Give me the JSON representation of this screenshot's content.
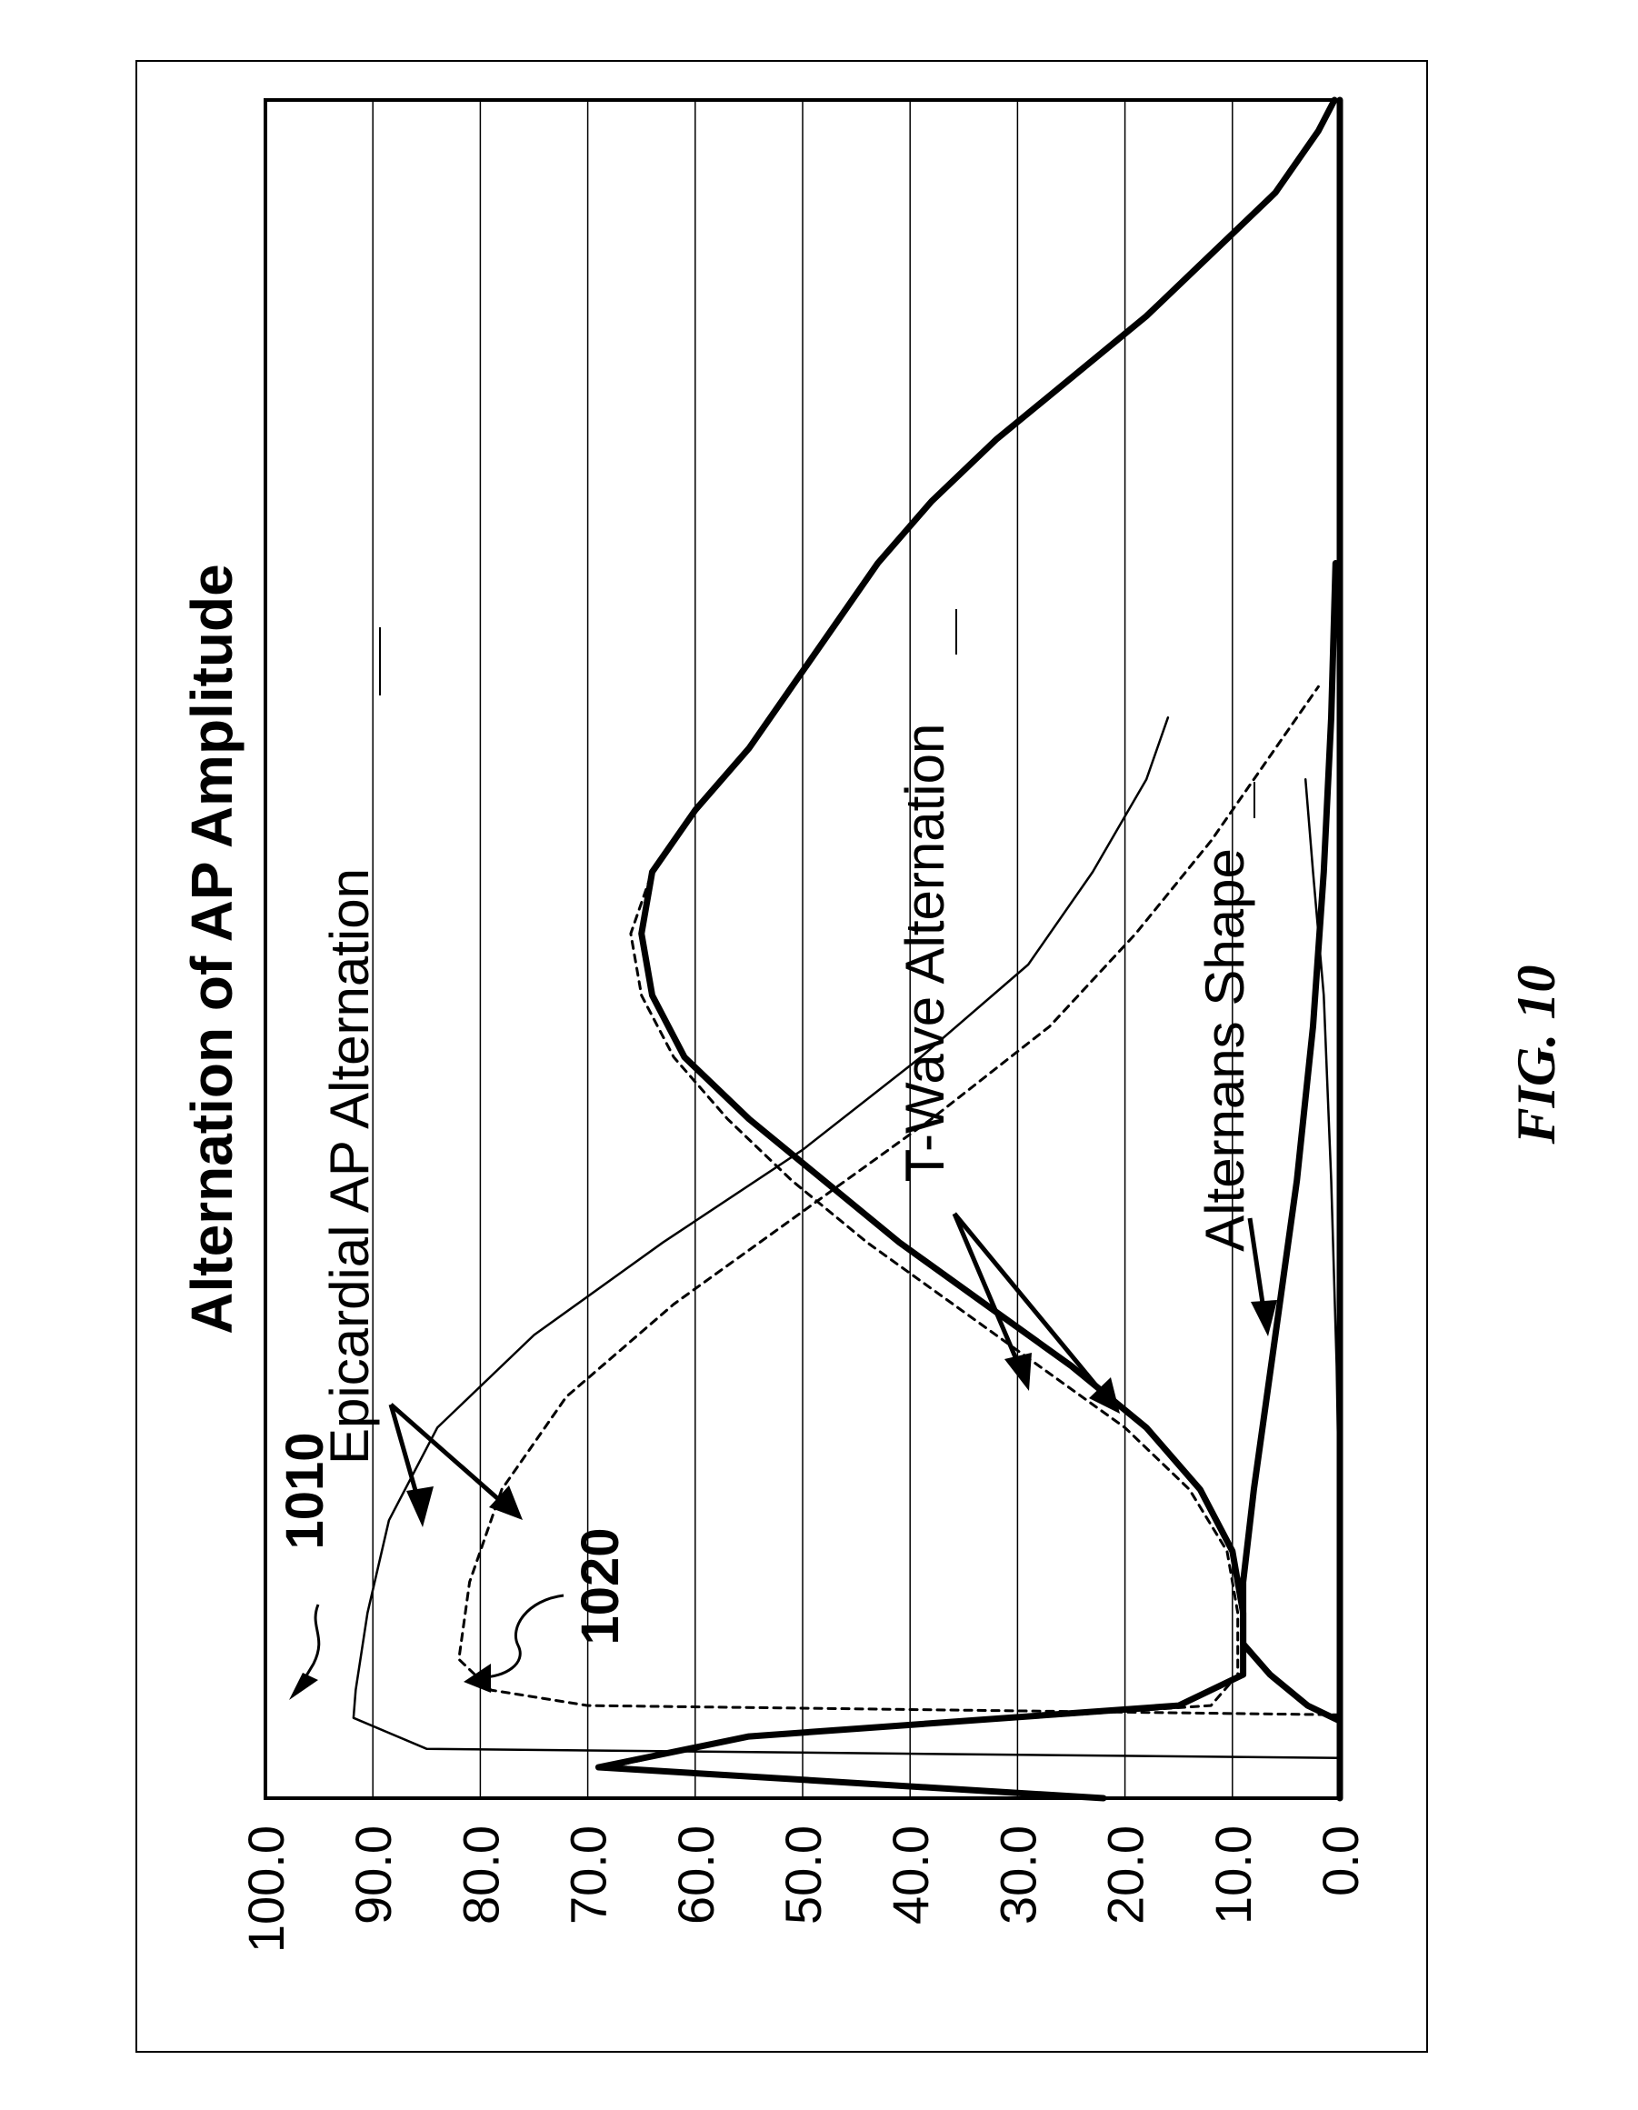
{
  "figure": {
    "caption": "FIG. 10"
  },
  "chart_data": {
    "type": "line",
    "title": "Alternation of AP Amplitude",
    "xlabel": "",
    "ylabel": "",
    "ylim": [
      0,
      100
    ],
    "y_ticks": [
      "0.0",
      "10.0",
      "20.0",
      "30.0",
      "40.0",
      "50.0",
      "60.0",
      "70.0",
      "80.0",
      "90.0",
      "100.0"
    ],
    "grid": true,
    "orientation": "rotated-90-ccw",
    "annotations": {
      "ref_1010": "1010",
      "ref_1020": "1020",
      "epicardial": "Epicardial AP Alternation",
      "twave": "T-Wave Alternation",
      "alternans": "Alternans Shape"
    },
    "series": [
      {
        "id": "epi-1010",
        "label_ref": "1010",
        "style": "thin-solid",
        "points": [
          [
            1.3,
            0
          ],
          [
            1.6,
            85
          ],
          [
            2.6,
            91.8
          ],
          [
            3.5,
            91.6
          ],
          [
            6,
            90.5
          ],
          [
            9,
            88.5
          ],
          [
            12,
            84
          ],
          [
            15,
            75
          ],
          [
            18,
            63
          ],
          [
            21,
            50
          ],
          [
            24,
            39
          ],
          [
            27,
            29
          ],
          [
            30,
            23
          ],
          [
            33,
            18
          ],
          [
            35,
            16
          ]
        ]
      },
      {
        "id": "epi-1020",
        "label_ref": "1020",
        "style": "dotted",
        "points": [
          [
            2.7,
            0
          ],
          [
            3,
            70
          ],
          [
            3.5,
            79
          ],
          [
            4.5,
            82
          ],
          [
            7,
            81
          ],
          [
            10,
            78
          ],
          [
            13,
            72
          ],
          [
            16,
            62
          ],
          [
            19,
            50
          ],
          [
            22,
            38
          ],
          [
            25,
            27
          ],
          [
            28,
            19
          ],
          [
            31,
            12
          ],
          [
            34,
            6
          ],
          [
            36,
            2
          ]
        ]
      },
      {
        "id": "twave-thick",
        "label_ref": "",
        "style": "thick-solid",
        "points": [
          [
            0,
            22
          ],
          [
            1,
            69
          ],
          [
            2,
            55
          ],
          [
            3,
            15
          ],
          [
            4,
            9
          ],
          [
            6,
            9
          ],
          [
            8,
            10
          ],
          [
            10,
            13
          ],
          [
            12,
            18
          ],
          [
            14,
            25
          ],
          [
            16,
            33
          ],
          [
            18,
            41
          ],
          [
            20,
            48
          ],
          [
            22,
            55
          ],
          [
            24,
            61
          ],
          [
            26,
            64
          ],
          [
            28,
            65
          ],
          [
            30,
            64
          ],
          [
            32,
            60
          ],
          [
            34,
            55
          ],
          [
            36,
            51
          ],
          [
            38,
            47
          ],
          [
            40,
            43
          ],
          [
            42,
            38
          ],
          [
            44,
            32
          ],
          [
            46,
            25
          ],
          [
            48,
            18
          ],
          [
            50,
            12
          ],
          [
            52,
            6
          ],
          [
            54,
            2
          ],
          [
            55,
            0.5
          ]
        ]
      },
      {
        "id": "twave-dotted",
        "label_ref": "",
        "style": "dotted",
        "points": [
          [
            1,
            68
          ],
          [
            2,
            55
          ],
          [
            3,
            12
          ],
          [
            4,
            9.5
          ],
          [
            6,
            9.5
          ],
          [
            8,
            10.5
          ],
          [
            10,
            14
          ],
          [
            12,
            20
          ],
          [
            14,
            28
          ],
          [
            16,
            36
          ],
          [
            18,
            44
          ],
          [
            20,
            51
          ],
          [
            22,
            57
          ],
          [
            24,
            62
          ],
          [
            26,
            65
          ],
          [
            28,
            66
          ],
          [
            30,
            64
          ]
        ]
      },
      {
        "id": "alternans-thick",
        "label_ref": "",
        "style": "thick-solid",
        "points": [
          [
            2.5,
            0
          ],
          [
            3,
            3
          ],
          [
            4,
            6.5
          ],
          [
            5,
            9
          ],
          [
            7,
            9
          ],
          [
            10,
            8
          ],
          [
            15,
            6
          ],
          [
            20,
            4
          ],
          [
            25,
            2.5
          ],
          [
            30,
            1.5
          ],
          [
            35,
            0.8
          ],
          [
            40,
            0.4
          ]
        ]
      },
      {
        "id": "alternans-thin",
        "label_ref": "",
        "style": "thin-solid",
        "points": [
          [
            1,
            0
          ],
          [
            2,
            0
          ],
          [
            4,
            0
          ],
          [
            8,
            0
          ],
          [
            14,
            0.3
          ],
          [
            20,
            0.8
          ],
          [
            26,
            1.5
          ],
          [
            30,
            2.5
          ],
          [
            33,
            3.2
          ]
        ]
      },
      {
        "id": "baseline",
        "label_ref": "",
        "style": "thick-solid",
        "points": [
          [
            0,
            0
          ],
          [
            10,
            0
          ],
          [
            20,
            0
          ],
          [
            30,
            0
          ],
          [
            40,
            0
          ],
          [
            50,
            0
          ],
          [
            55,
            0
          ]
        ]
      }
    ]
  }
}
